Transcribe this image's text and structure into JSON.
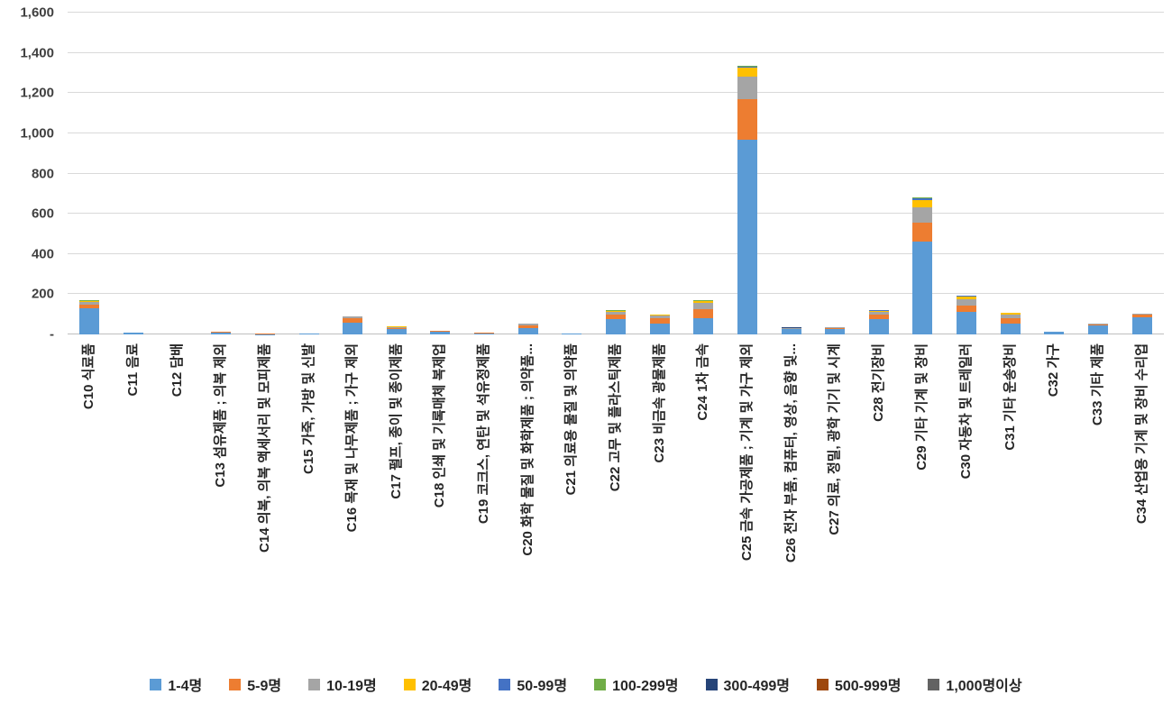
{
  "chart_data": {
    "type": "bar",
    "stacked": true,
    "title": "",
    "xlabel": "",
    "ylabel": "",
    "ylim": [
      0,
      1600
    ],
    "grid": true,
    "legend_position": "bottom",
    "y_ticks": [
      {
        "label": "1,600",
        "value": 1600
      },
      {
        "label": "1,400",
        "value": 1400
      },
      {
        "label": "1,200",
        "value": 1200
      },
      {
        "label": "1,000",
        "value": 1000
      },
      {
        "label": "800",
        "value": 800
      },
      {
        "label": "600",
        "value": 600
      },
      {
        "label": "400",
        "value": 400
      },
      {
        "label": "200",
        "value": 200
      },
      {
        "label": "-",
        "value": 0
      }
    ],
    "categories": [
      "C10 식료품",
      "C11 음료",
      "C12 담배",
      "C13 섬유제품 ; 의복 제외",
      "C14 의복, 의복 액세서리 및 모피제품",
      "C15 가죽, 가방 및 신발",
      "C16 목재 및 나무제품 ; 가구 제외",
      "C17 펄프, 종이 및 종이제품",
      "C18 인쇄 및 기록매체 복제업",
      "C19 코크스, 연탄 및 석유정제품",
      "C20 화학 물질 및 화학제품 ; 의약품...",
      "C21 의료용 물질 및 의약품",
      "C22 고무 및 플라스틱제품",
      "C23 비금속 광물제품",
      "C24 1차 금속",
      "C25 금속 가공제품 ; 기계 및 가구 제외",
      "C26 전자 부품, 컴퓨터, 영상, 음향 및...",
      "C27 의료, 정밀, 광학 기기 및 시계",
      "C28 전기장비",
      "C29 기타 기계 및 장비",
      "C30 자동차 및 트레일러",
      "C31 기타 운송장비",
      "C32 가구",
      "C33 기타 제품",
      "C34 산업용 기계 및 장비 수리업"
    ],
    "series": [
      {
        "name": "1-4명",
        "color": "#5B9BD5",
        "values": [
          130,
          8,
          0,
          10,
          2,
          3,
          60,
          25,
          14,
          6,
          32,
          4,
          75,
          55,
          80,
          970,
          25,
          25,
          75,
          460,
          110,
          55,
          12,
          45,
          85
        ]
      },
      {
        "name": "5-9명",
        "color": "#ED7D31",
        "values": [
          18,
          1,
          0,
          3,
          1,
          0,
          20,
          8,
          4,
          1,
          12,
          1,
          25,
          25,
          45,
          200,
          4,
          5,
          25,
          95,
          35,
          25,
          2,
          5,
          12
        ]
      },
      {
        "name": "10-19명",
        "color": "#A5A5A5",
        "values": [
          15,
          1,
          0,
          2,
          0,
          0,
          8,
          5,
          2,
          1,
          8,
          0,
          13,
          14,
          30,
          110,
          3,
          4,
          12,
          75,
          30,
          20,
          1,
          4,
          6
        ]
      },
      {
        "name": "20-49명",
        "color": "#FFC000",
        "values": [
          5,
          0,
          0,
          0,
          0,
          0,
          2,
          2,
          0,
          0,
          3,
          0,
          5,
          5,
          10,
          45,
          0,
          1,
          6,
          40,
          12,
          6,
          0,
          1,
          2
        ]
      },
      {
        "name": "50-99명",
        "color": "#4472C4",
        "values": [
          0,
          0,
          0,
          0,
          0,
          0,
          0,
          0,
          0,
          0,
          0,
          0,
          0,
          0,
          3,
          8,
          0,
          0,
          2,
          8,
          4,
          0,
          0,
          0,
          0
        ]
      },
      {
        "name": "100-299명",
        "color": "#70AD47",
        "values": [
          2,
          0,
          0,
          0,
          0,
          0,
          0,
          0,
          0,
          0,
          0,
          0,
          2,
          0,
          2,
          3,
          0,
          0,
          0,
          3,
          2,
          2,
          0,
          0,
          0
        ]
      },
      {
        "name": "300-499명",
        "color": "#264478",
        "values": [
          0,
          0,
          0,
          0,
          0,
          0,
          0,
          0,
          0,
          0,
          0,
          0,
          0,
          0,
          0,
          2,
          3,
          0,
          0,
          2,
          0,
          0,
          0,
          0,
          0
        ]
      },
      {
        "name": "500-999명",
        "color": "#9E480E",
        "values": [
          0,
          0,
          0,
          0,
          0,
          0,
          0,
          0,
          0,
          0,
          0,
          0,
          0,
          0,
          0,
          0,
          0,
          0,
          0,
          0,
          0,
          0,
          0,
          0,
          0
        ]
      },
      {
        "name": "1,000명이상",
        "color": "#636363",
        "values": [
          0,
          0,
          0,
          0,
          0,
          0,
          0,
          0,
          0,
          0,
          0,
          0,
          0,
          0,
          0,
          0,
          0,
          0,
          0,
          0,
          0,
          0,
          0,
          0,
          0
        ]
      }
    ]
  }
}
